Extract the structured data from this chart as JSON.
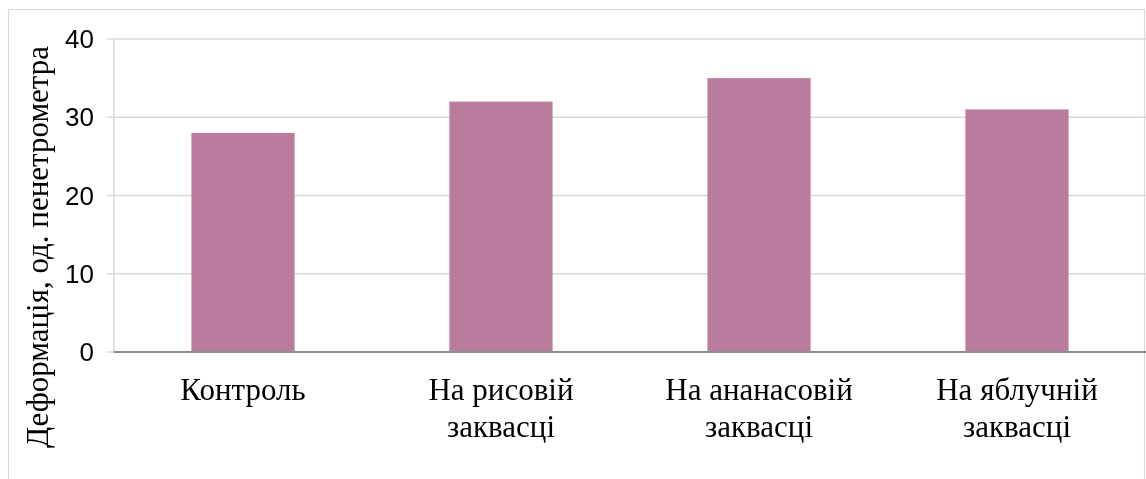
{
  "chart_data": {
    "type": "bar",
    "ylabel": "Деформація, од. пенетрометра",
    "categories": [
      "Контроль",
      "На рисовій заквасці",
      "На ананасовій заквасці",
      "На яблучній заквасці"
    ],
    "values": [
      28,
      32,
      35,
      31
    ],
    "color": "#b97c9c",
    "ylim": [
      0,
      40
    ],
    "yticks": [
      0,
      10,
      20,
      30,
      40
    ],
    "grid": "y"
  }
}
